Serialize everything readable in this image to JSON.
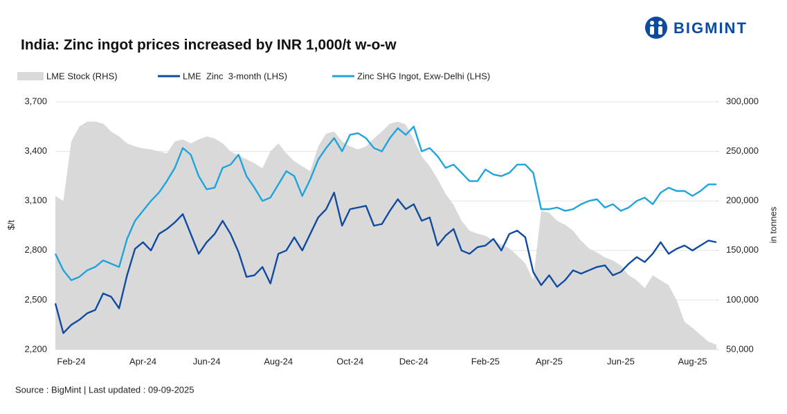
{
  "chart_data": {
    "type": "line",
    "title": "India: Zinc ingot prices increased by INR 1,000/t w-o-w",
    "logo": "BIGMINT",
    "source": "Source : BigMint | Last updated : 09-09-2025",
    "ylabel": "$/t",
    "y2label": "in tonnes",
    "grid": true,
    "categories": [
      null,
      null,
      "Feb-24",
      null,
      null,
      null,
      null,
      null,
      null,
      null,
      null,
      "Apr-24",
      null,
      null,
      null,
      null,
      null,
      null,
      null,
      "Jun-24",
      null,
      null,
      null,
      null,
      null,
      null,
      null,
      null,
      "Aug-24",
      null,
      null,
      null,
      null,
      null,
      null,
      null,
      null,
      "Oct-24",
      null,
      null,
      null,
      null,
      null,
      null,
      null,
      "Dec-24",
      null,
      null,
      null,
      null,
      null,
      null,
      null,
      null,
      "Feb-25",
      null,
      null,
      null,
      null,
      null,
      null,
      null,
      "Apr-25",
      null,
      null,
      null,
      null,
      null,
      null,
      null,
      null,
      "Jun-25",
      null,
      null,
      null,
      null,
      null,
      null,
      null,
      null,
      "Aug-25",
      null,
      null,
      null
    ],
    "ylim": [
      2200,
      3700
    ],
    "yticks": [
      {
        "value": 2200,
        "label": "2,200"
      },
      {
        "value": 2500,
        "label": "2,500"
      },
      {
        "value": 2800,
        "label": "2,800"
      },
      {
        "value": 3100,
        "label": "3,100"
      },
      {
        "value": 3400,
        "label": "3,400"
      },
      {
        "value": 3700,
        "label": "3,700"
      }
    ],
    "y2lim": [
      50000,
      300000
    ],
    "y2ticks": [
      {
        "value": 50000,
        "label": "50,000"
      },
      {
        "value": 100000,
        "label": "100,000"
      },
      {
        "value": 150000,
        "label": "150,000"
      },
      {
        "value": 200000,
        "label": "200,000"
      },
      {
        "value": 250000,
        "label": "250,000"
      },
      {
        "value": 300000,
        "label": "300,000"
      }
    ],
    "series": [
      {
        "name": "LME Stock (RHS)",
        "type": "area",
        "axis": "y2",
        "color": "#d9d9d9",
        "values": [
          205000,
          200000,
          260000,
          275000,
          280000,
          280000,
          278000,
          270000,
          265000,
          258000,
          255000,
          253000,
          252000,
          250000,
          248000,
          260000,
          262000,
          258000,
          262000,
          265000,
          263000,
          258000,
          250000,
          246000,
          242000,
          238000,
          233000,
          250000,
          258000,
          248000,
          240000,
          235000,
          230000,
          255000,
          268000,
          270000,
          260000,
          255000,
          252000,
          255000,
          263000,
          270000,
          278000,
          280000,
          277000,
          262000,
          245000,
          235000,
          222000,
          207000,
          196000,
          180000,
          170000,
          167000,
          165000,
          160000,
          156000,
          152000,
          145000,
          137000,
          120000,
          190000,
          188000,
          180000,
          176000,
          170000,
          160000,
          152000,
          148000,
          143000,
          140000,
          135000,
          125000,
          120000,
          112000,
          125000,
          120000,
          115000,
          100000,
          78000,
          72000,
          65000,
          58000,
          55000
        ]
      },
      {
        "name": "LME  Zinc  3-month (LHS)",
        "type": "line",
        "color": "#0d4aa0",
        "values": [
          2480,
          2300,
          2350,
          2380,
          2420,
          2440,
          2540,
          2520,
          2450,
          2650,
          2810,
          2850,
          2800,
          2900,
          2930,
          2970,
          3020,
          2900,
          2780,
          2850,
          2900,
          2980,
          2900,
          2790,
          2640,
          2650,
          2700,
          2600,
          2780,
          2800,
          2880,
          2800,
          2900,
          3000,
          3050,
          3150,
          2950,
          3050,
          3060,
          3070,
          2950,
          2960,
          3040,
          3110,
          3050,
          3080,
          2980,
          3000,
          2830,
          2890,
          2930,
          2800,
          2780,
          2820,
          2830,
          2870,
          2800,
          2900,
          2920,
          2880,
          2670,
          2590,
          2650,
          2580,
          2620,
          2680,
          2660,
          2680,
          2700,
          2710,
          2650,
          2670,
          2720,
          2760,
          2730,
          2780,
          2850,
          2780,
          2810,
          2830,
          2800,
          2830,
          2860,
          2850
        ]
      },
      {
        "name": "Zinc SHG Ingot, Exw-Delhi (LHS)",
        "type": "line",
        "color": "#1ea3dc",
        "values": [
          2780,
          2680,
          2620,
          2640,
          2680,
          2700,
          2740,
          2720,
          2700,
          2870,
          2980,
          3040,
          3100,
          3150,
          3220,
          3300,
          3420,
          3380,
          3250,
          3170,
          3180,
          3300,
          3320,
          3380,
          3250,
          3180,
          3100,
          3120,
          3200,
          3280,
          3250,
          3130,
          3230,
          3350,
          3420,
          3480,
          3400,
          3500,
          3510,
          3480,
          3420,
          3400,
          3480,
          3540,
          3500,
          3550,
          3400,
          3420,
          3370,
          3300,
          3320,
          3270,
          3220,
          3220,
          3290,
          3260,
          3250,
          3270,
          3320,
          3320,
          3270,
          3050,
          3050,
          3060,
          3040,
          3050,
          3080,
          3100,
          3110,
          3060,
          3080,
          3040,
          3060,
          3100,
          3120,
          3080,
          3150,
          3180,
          3160,
          3160,
          3130,
          3160,
          3200,
          3200
        ]
      }
    ]
  }
}
